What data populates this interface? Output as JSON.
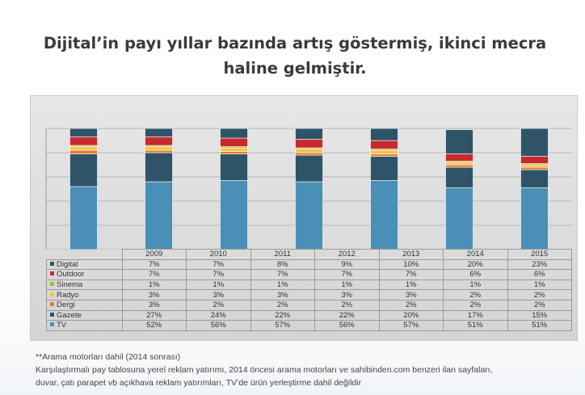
{
  "title": {
    "line1": "Dijital’in payı yıllar bazında artış göstermiş, ikinci mecra",
    "line2": "haline gelmiştir."
  },
  "chart_data": {
    "type": "bar",
    "stacked": true,
    "categories": [
      "2009",
      "2010",
      "2011",
      "2012",
      "2013",
      "2014",
      "2015"
    ],
    "series": [
      {
        "name": "TV",
        "color": "#4a8fb5",
        "values": [
          52,
          56,
          57,
          56,
          57,
          51,
          51
        ],
        "labels": [
          "52%",
          "56%",
          "57%",
          "56%",
          "57%",
          "51%",
          "51%"
        ]
      },
      {
        "name": "Gazete",
        "color": "#2f5468",
        "values": [
          27,
          24,
          22,
          22,
          20,
          17,
          15
        ],
        "labels": [
          "27%",
          "24%",
          "22%",
          "22%",
          "20%",
          "17%",
          "15%"
        ]
      },
      {
        "name": "Dergi",
        "color": "#e8783a",
        "values": [
          3,
          2,
          2,
          2,
          2,
          2,
          2
        ],
        "labels": [
          "3%",
          "2%",
          "2%",
          "2%",
          "2%",
          "2%",
          "2%"
        ]
      },
      {
        "name": "Radyo",
        "color": "#f4c542",
        "values": [
          3,
          3,
          3,
          3,
          3,
          2,
          2
        ],
        "labels": [
          "3%",
          "3%",
          "3%",
          "3%",
          "3%",
          "2%",
          "2%"
        ]
      },
      {
        "name": "Sinema",
        "color": "#9cbe3c",
        "values": [
          1,
          1,
          1,
          1,
          1,
          1,
          1
        ],
        "labels": [
          "1%",
          "1%",
          "1%",
          "1%",
          "1%",
          "1%",
          "1%"
        ]
      },
      {
        "name": "Outdoor",
        "color": "#c8282e",
        "values": [
          7,
          7,
          7,
          7,
          7,
          6,
          6
        ],
        "labels": [
          "7%",
          "7%",
          "7%",
          "7%",
          "7%",
          "6%",
          "6%"
        ]
      },
      {
        "name": "Digital",
        "color": "#2f5468",
        "values": [
          7,
          7,
          8,
          9,
          10,
          20,
          23
        ],
        "labels": [
          "7%",
          "7%",
          "8%",
          "9%",
          "10%",
          "20%",
          "23%"
        ]
      }
    ],
    "ylim": [
      0,
      100
    ],
    "grid": true,
    "legend": "data table"
  },
  "footnotes": {
    "line1": "**Arama motorları dahil (2014 sonrası)",
    "line2": "Karşılaştırmalı pay tablosuna yerel reklam yatırımı, 2014 öncesi arama motorları ve sahibinden.com benzeri ilan sayfaları,",
    "line3": "duvar, çatı parapet vb açıkhava reklam yatırımları, TV’de ürün yerleştirme dahil değildir"
  }
}
